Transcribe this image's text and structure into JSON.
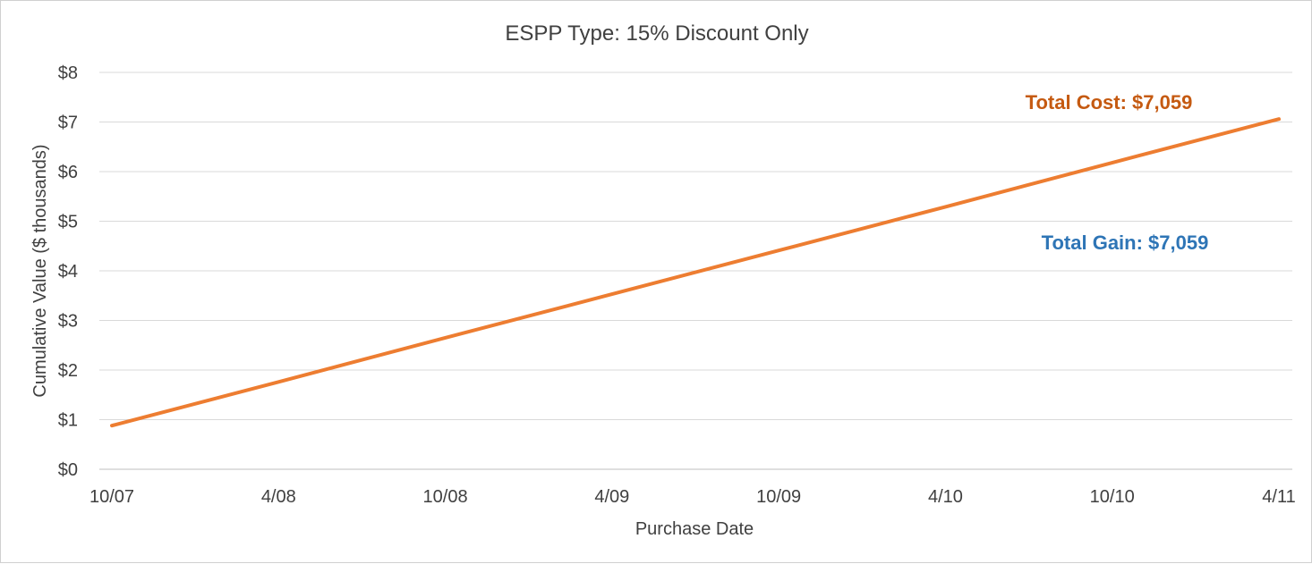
{
  "chart_data": {
    "type": "line",
    "title": "ESPP Type: 15% Discount Only",
    "xlabel": "Purchase Date",
    "ylabel": "Cumulative Value ($ thousands)",
    "x": [
      "10/07",
      "4/08",
      "10/08",
      "4/09",
      "10/09",
      "4/10",
      "10/10",
      "4/11"
    ],
    "y_ticks": [
      {
        "value": 0,
        "label": "$0"
      },
      {
        "value": 1,
        "label": "$1"
      },
      {
        "value": 2,
        "label": "$2"
      },
      {
        "value": 3,
        "label": "$3"
      },
      {
        "value": 4,
        "label": "$4"
      },
      {
        "value": 5,
        "label": "$5"
      },
      {
        "value": 6,
        "label": "$6"
      },
      {
        "value": 7,
        "label": "$7"
      },
      {
        "value": 8,
        "label": "$8"
      }
    ],
    "ylim": [
      0,
      8
    ],
    "grid": true,
    "legend": "none",
    "series": [
      {
        "color": "#ED7D31",
        "values": [
          0.88,
          1.76,
          2.65,
          3.53,
          4.41,
          5.29,
          6.18,
          7.059
        ]
      }
    ],
    "annotations": [
      {
        "text": "Total Cost: $7,059",
        "color": "#C55A11",
        "position": "upper-right"
      },
      {
        "text": "Total Gain: $7,059",
        "color": "#2E75B6",
        "position": "right-middle"
      }
    ]
  }
}
